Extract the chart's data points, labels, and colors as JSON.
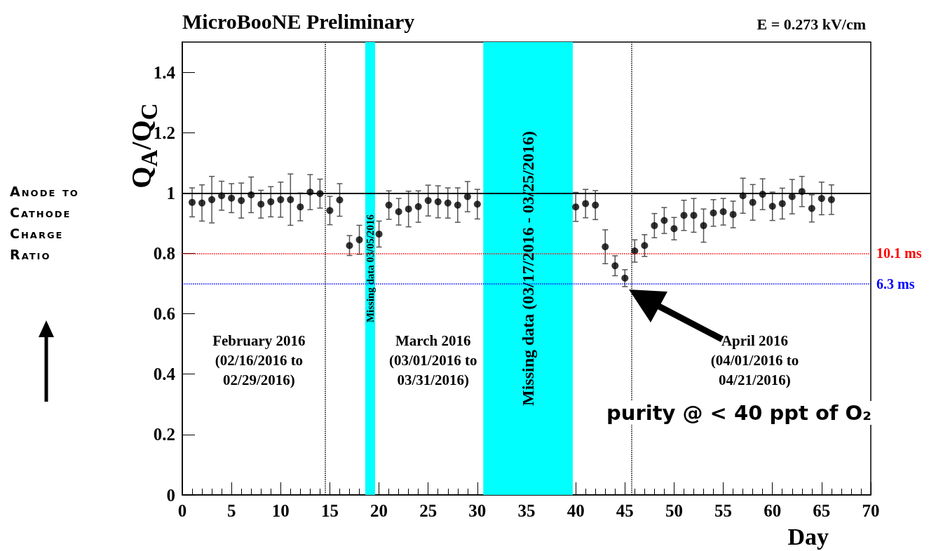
{
  "chart_data": {
    "type": "scatter",
    "title": "MicroBooNE Preliminary",
    "subtitle": "E = 0.273 kV/cm",
    "xlabel": "Day",
    "ylabel": "Q$_{A}$/Q$_{C}$",
    "x": [
      1,
      2,
      3,
      4,
      5,
      6,
      7,
      8,
      9,
      10,
      11,
      12,
      13,
      14,
      15,
      16,
      17,
      18,
      20,
      21,
      22,
      23,
      24,
      25,
      26,
      27,
      28,
      29,
      30,
      40,
      41,
      42,
      43,
      44,
      45,
      46,
      47,
      48,
      49,
      50,
      51,
      52,
      53,
      54,
      55,
      56,
      57,
      58,
      59,
      60,
      61,
      62,
      63,
      64,
      65,
      66
    ],
    "series": [
      {
        "color": "#000000",
        "values": [
          0.969,
          0.967,
          0.978,
          0.991,
          0.983,
          0.975,
          0.994,
          0.963,
          0.971,
          0.978,
          0.978,
          0.954,
          1.003,
          0.998,
          0.942,
          0.977,
          0.826,
          0.845,
          0.864,
          0.96,
          0.938,
          0.947,
          0.955,
          0.975,
          0.971,
          0.967,
          0.96,
          0.988,
          0.963,
          0.954,
          0.965,
          0.96,
          0.822,
          0.759,
          0.718,
          0.808,
          0.826,
          0.892,
          0.909,
          0.882,
          0.926,
          0.926,
          0.892,
          0.934,
          0.938,
          0.929,
          0.991,
          0.969,
          0.996,
          0.956,
          0.965,
          0.988,
          1.005,
          0.949,
          0.982,
          0.978
        ],
        "errors": [
          0.048,
          0.06,
          0.077,
          0.048,
          0.048,
          0.058,
          0.059,
          0.046,
          0.05,
          0.058,
          0.085,
          0.046,
          0.058,
          0.048,
          0.047,
          0.054,
          0.033,
          0.048,
          0.043,
          0.047,
          0.044,
          0.059,
          0.052,
          0.051,
          0.053,
          0.05,
          0.057,
          0.05,
          0.049,
          0.048,
          0.047,
          0.048,
          0.056,
          0.033,
          0.028,
          0.037,
          0.036,
          0.04,
          0.043,
          0.037,
          0.05,
          0.056,
          0.055,
          0.044,
          0.044,
          0.044,
          0.058,
          0.059,
          0.051,
          0.047,
          0.051,
          0.057,
          0.05,
          0.045,
          0.054,
          0.049
        ]
      }
    ],
    "marker": "circle",
    "grid": false,
    "xlim": [
      0,
      70
    ],
    "xticks": [
      0,
      5,
      10,
      15,
      20,
      25,
      30,
      35,
      40,
      45,
      50,
      55,
      60,
      65,
      70
    ],
    "ylim": [
      0,
      1.5
    ],
    "yticks": [
      0,
      0.2,
      0.4,
      0.6,
      0.8,
      1,
      1.2,
      1.4
    ],
    "ref_lines": [
      {
        "axis": "y",
        "value": 1,
        "label": null,
        "color": "#000000",
        "line_style": "solid"
      },
      {
        "axis": "y",
        "value": 0.8,
        "label": "10.1 ms",
        "color": "#ff0000",
        "line_style": "dotted"
      },
      {
        "axis": "y",
        "value": 0.7,
        "label": "6.3 ms",
        "color": "#0000ff",
        "line_style": "dotted"
      },
      {
        "axis": "x",
        "value": 14.5,
        "label": null,
        "color": "#000000",
        "line_style": "dotted"
      },
      {
        "axis": "x",
        "value": 45.7,
        "label": null,
        "color": "#000000",
        "line_style": "dotted"
      }
    ],
    "bands": [
      {
        "axis": "x",
        "from": 18.6,
        "to": 19.6,
        "label": "Missing data 03/05/2016",
        "color": "#00ffff"
      },
      {
        "axis": "x",
        "from": 30.6,
        "to": 39.7,
        "label": "Missing data (03/17/2016 - 03/25/2016)",
        "color": "#00ffff"
      }
    ],
    "annotations": [
      "February 2016\n(02/16/2016 to\n02/29/2016)",
      "March 2016\n(03/01/2016 to\n03/31/2016)",
      "April 2016\n(04/01/2016 to\n04/21/2016)",
      "purity @ < 40 ppt of O₂",
      "Anode to Cathode Charge Ratio"
    ]
  }
}
